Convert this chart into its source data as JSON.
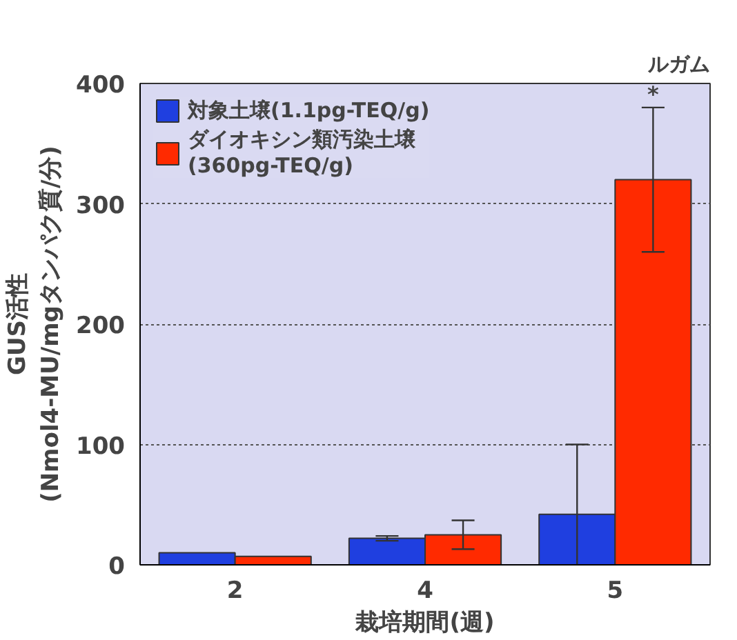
{
  "chart_data": {
    "type": "bar",
    "xlabel": "栽培期間(週)",
    "ylabel": "GUS活性\n(Nmol4-MU/mgタンパク質/分)",
    "categories": [
      "2",
      "4",
      "5"
    ],
    "series": [
      {
        "name": "対象土壌(1.1pg-TEQ/g)",
        "color": "#1f3fe0",
        "values": [
          10,
          22,
          42
        ],
        "errors": [
          null,
          2,
          58
        ]
      },
      {
        "name": "ダイオキシン類汚染土壌\n(360pg-TEQ/g)",
        "color": "#ff2a00",
        "values": [
          7,
          25,
          320
        ],
        "errors": [
          null,
          12,
          60
        ]
      }
    ],
    "ylim": [
      0,
      400
    ],
    "yticks": [
      0,
      100,
      200,
      300,
      400
    ],
    "grid": "y",
    "legend": "top left",
    "annotations": [
      "ルガム",
      "*"
    ]
  }
}
